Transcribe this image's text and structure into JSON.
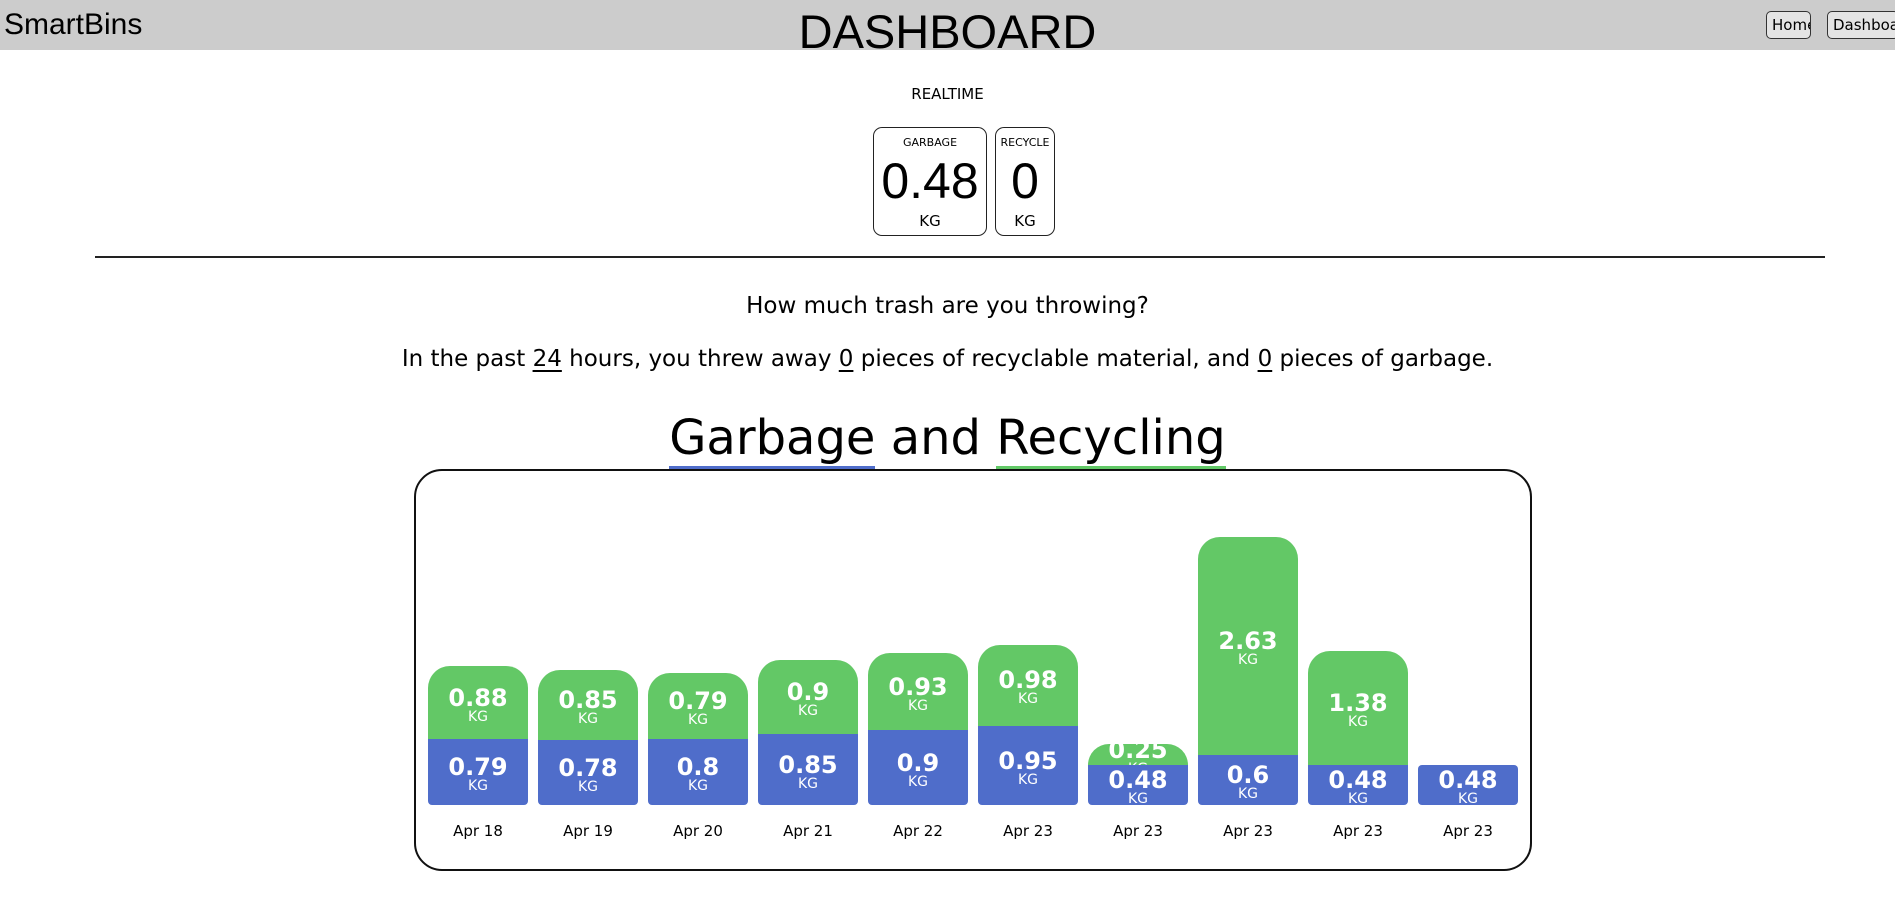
{
  "header": {
    "brand": "SmartBins",
    "title": "DASHBOARD",
    "nav": [
      "Home",
      "Dashboa"
    ]
  },
  "realtime": {
    "label": "REALTIME",
    "cards": [
      {
        "title": "GARBAGE",
        "value": "0.48",
        "unit": "KG"
      },
      {
        "title": "RECYCLE",
        "value": "0",
        "unit": "KG"
      }
    ]
  },
  "summary": {
    "question": "How much trash are you throwing?",
    "text_1": "In the past ",
    "hours": "24",
    "text_2": " hours, you threw away ",
    "recyclable_count": "0",
    "text_3": " pieces of recyclable material, and ",
    "garbage_count": "0",
    "text_4": " pieces of garbage."
  },
  "chart_title": {
    "garbage": "Garbage",
    "and": " and ",
    "recycling": "Recycling"
  },
  "colors": {
    "garbage": "#4f6dca",
    "recycling": "#63c866"
  },
  "chart_data": {
    "type": "bar",
    "stacked": true,
    "unit": "KG",
    "categories": [
      "Apr 18",
      "Apr 19",
      "Apr 20",
      "Apr 21",
      "Apr 22",
      "Apr 23",
      "Apr 23",
      "Apr 23",
      "Apr 23",
      "Apr 23"
    ],
    "series": [
      {
        "values": [
          0.79,
          0.78,
          0.8,
          0.85,
          0.9,
          0.95,
          0.48,
          0.6,
          0.48,
          0.48
        ]
      },
      {
        "values": [
          0.88,
          0.85,
          0.79,
          0.9,
          0.93,
          0.98,
          0.25,
          2.63,
          1.38,
          0
        ]
      }
    ]
  }
}
